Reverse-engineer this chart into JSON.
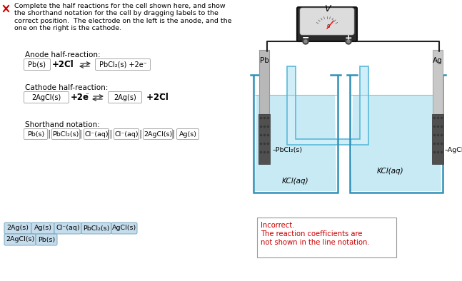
{
  "bg_color": "#ffffff",
  "text_color": "#000000",
  "title_text": "Complete the half reactions for the cell shown here, and show\nthe shorthand notation for the cell by dragging labels to the\ncorrect position.  The electrode on the left is the anode, and the\none on the right is the cathode.",
  "anode_label": "Anode half-reaction:",
  "cathode_label": "Cathode half-reaction:",
  "shorthand_label": "Shorthand notation:",
  "incorrect_title": "Incorrect.",
  "incorrect_body": "The reaction coefficients are\nnot shown in the line notation.",
  "incorrect_title_color": "#cc0000",
  "incorrect_body_color": "#cc0000",
  "beaker_fill": "#c8eaf5",
  "beaker_fill2": "#a8d8ec",
  "beaker_edge": "#5ab8d8",
  "beaker_edge2": "#3090b8",
  "electrode_light": "#c8c8c8",
  "electrode_mid": "#a0a0a0",
  "electrode_dark": "#606060",
  "deposit_color": "#505050",
  "voltmeter_dark": "#282828",
  "voltmeter_face": "#e0e0e0",
  "wire_color": "#222222",
  "salt_fill": "#d0eef8",
  "salt_edge": "#5ab8d8",
  "drag_fill": "#c5dced",
  "drag_edge": "#7aaabb",
  "box_edge": "#aaaaaa",
  "sep_color": "#333333"
}
